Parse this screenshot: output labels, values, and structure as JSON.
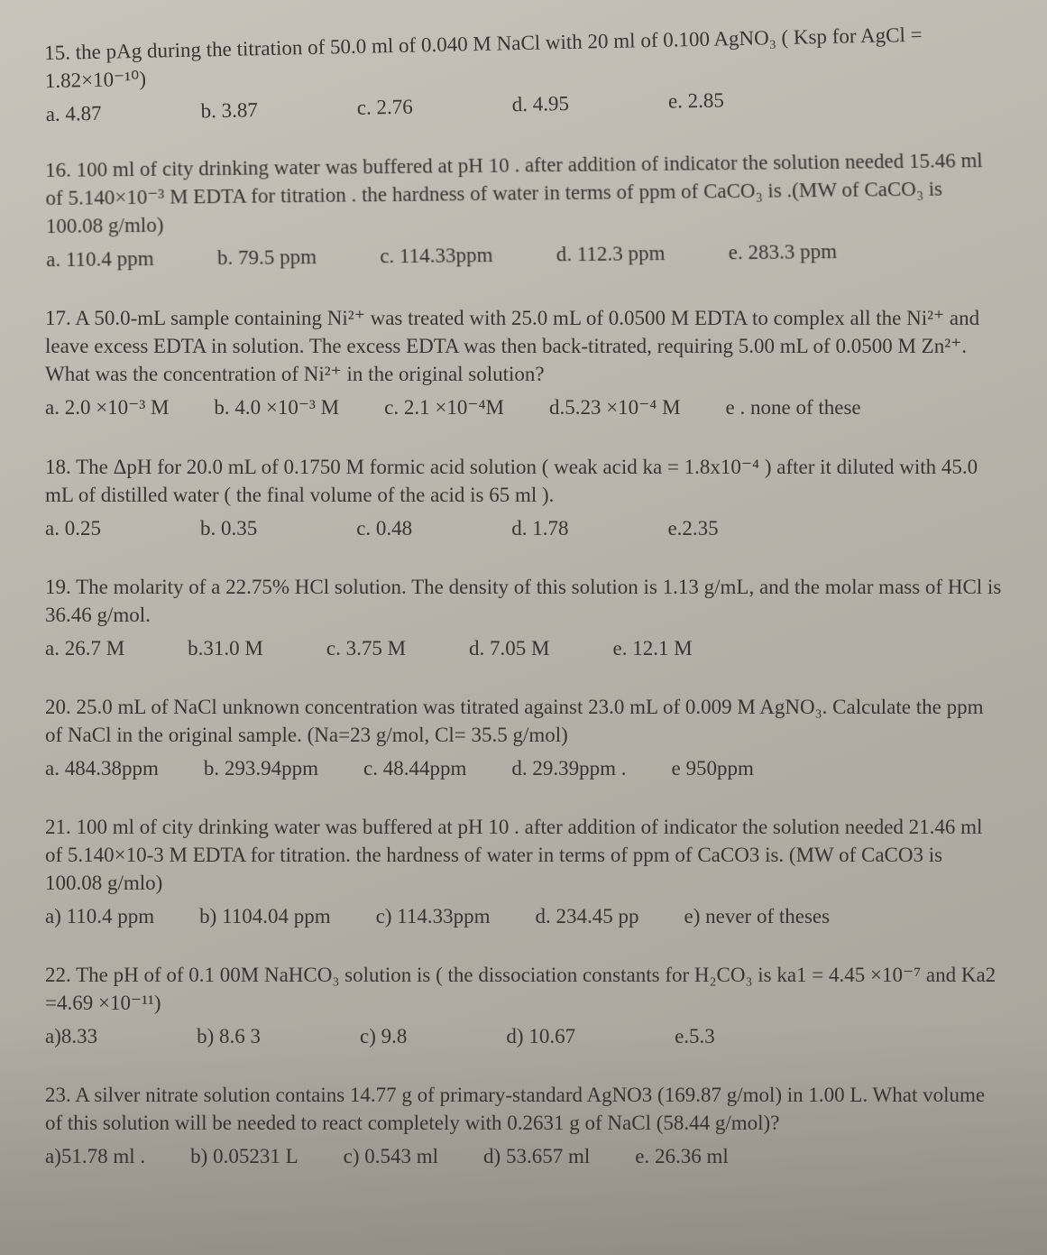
{
  "page": {
    "background_color": "#b5b1a8",
    "text_color": "#3a342e",
    "font_family": "Times New Roman",
    "base_fontsize_pt": 17
  },
  "questions": [
    {
      "num": "15",
      "text": "15. the pAg during the titration of 50.0 ml of 0.040 M NaCl with 20 ml of 0.100 AgNO₃ ( Ksp for AgCl = 1.82×10⁻¹⁰)",
      "opts": [
        "a. 4.87",
        "b. 3.87",
        "c. 2.76",
        "d. 4.95",
        "e. 2.85"
      ]
    },
    {
      "num": "16",
      "text": "16. 100 ml of city drinking water was buffered at pH 10 . after addition of indicator the solution needed 15.46 ml of 5.140×10⁻³ M EDTA for titration . the hardness of water in terms of ppm of CaCO₃ is .(MW of CaCO₃ is 100.08 g/mlo)",
      "opts": [
        "a. 110.4 ppm",
        "b. 79.5 ppm",
        "c. 114.33ppm",
        "d. 112.3 ppm",
        "e. 283.3 ppm"
      ]
    },
    {
      "num": "17",
      "text": "17. A 50.0-mL sample containing Ni²⁺ was treated with 25.0 mL of 0.0500 M EDTA to complex all the Ni²⁺ and leave excess EDTA in solution. The excess EDTA was then back-titrated, requiring 5.00 mL of 0.0500 M Zn²⁺. What was the concentration of Ni²⁺ in the original solution?",
      "opts": [
        "a. 2.0 ×10⁻³ M",
        "b. 4.0 ×10⁻³ M",
        "c. 2.1 ×10⁻⁴M",
        "d.5.23  ×10⁻⁴ M",
        "e . none of these"
      ]
    },
    {
      "num": "18",
      "text": "18. The ΔpH for 20.0 mL of 0.1750 M formic acid  solution  ( weak acid  ka = 1.8x10⁻⁴ )  after it diluted with  45.0 mL of distilled water  ( the final volume of the acid is 65 ml ).",
      "opts": [
        "a. 0.25",
        "b. 0.35",
        "c.  0.48",
        "d. 1.78",
        "e.2.35"
      ]
    },
    {
      "num": "19",
      "text": "19. The molarity of a 22.75% HCl solution. The density of this solution is 1.13 g/mL, and the molar mass of HCl is 36.46 g/mol.",
      "opts": [
        "a. 26.7 M",
        "b.31.0 M",
        "c. 3.75 M",
        "d. 7.05 M",
        "e. 12.1 M"
      ]
    },
    {
      "num": "20",
      "text": "20. 25.0 mL of NaCl unknown concentration was titrated against 23.0 mL of 0.009 M AgNO₃. Calculate the ppm of NaCl in the original sample. (Na=23 g/mol, Cl= 35.5 g/mol)",
      "opts": [
        "a. 484.38ppm",
        "b. 293.94ppm",
        "c. 48.44ppm",
        "d. 29.39ppm .",
        "e 950ppm"
      ]
    },
    {
      "num": "21",
      "text": "21. 100 ml of city drinking water was buffered at pH 10 . after addition of indicator the solution needed 21.46 ml of 5.140×10-3 M EDTA for titration. the hardness of water in terms of ppm of CaCO3 is. (MW of CaCO3 is 100.08 g/mlo)",
      "opts": [
        "a) 110.4 ppm",
        "b) 1104.04 ppm",
        "c) 114.33ppm",
        "d. 234.45 pp",
        "e) never of theses"
      ]
    },
    {
      "num": "22",
      "text": "22. The pH  of of 0.1 00M NaHCO₃ solution is ( the dissociation constants for  H₂CO₃ is ka1 = 4.45 ×10⁻⁷ and Ka2 =4.69 ×10⁻¹¹)",
      "opts": [
        "a)8.33",
        "b) 8.6 3",
        "c) 9.8",
        "d) 10.67",
        "e.5.3"
      ]
    },
    {
      "num": "23",
      "text": "23. A silver nitrate solution contains 14.77 g of primary-standard AgNO3 (169.87 g/mol) in 1.00 L. What volume of this solution will be needed to react completely with 0.2631 g of NaCl (58.44 g/mol)?",
      "opts": [
        "a)51.78 ml .",
        "b) 0.05231 L",
        "c) 0.543 ml",
        "d) 53.657 ml",
        "e. 26.36 ml"
      ]
    }
  ]
}
